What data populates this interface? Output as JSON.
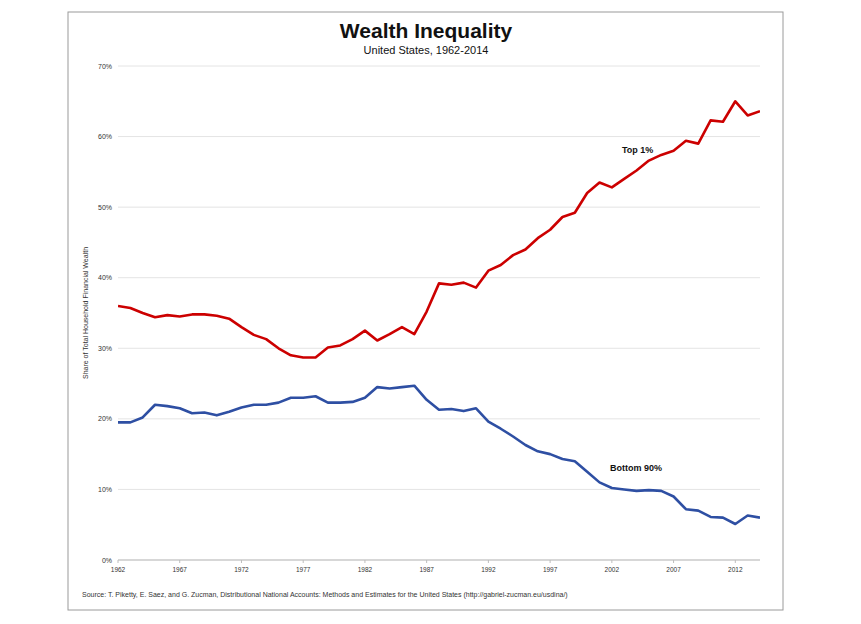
{
  "chart_data": {
    "type": "line",
    "title": "Wealth Inequality",
    "subtitle": "United States, 1962-2014",
    "y_label": "Share of Total Household Financial Wealth",
    "source": "Source: T. Piketty, E. Saez, and G. Zucman, Distributional National Accounts: Methods and Estimates for the United States (http://gabriel-zucman.eu/usdina/)",
    "x": [
      1962,
      1963,
      1964,
      1965,
      1966,
      1967,
      1968,
      1969,
      1970,
      1971,
      1972,
      1973,
      1974,
      1975,
      1976,
      1977,
      1978,
      1979,
      1980,
      1981,
      1982,
      1983,
      1984,
      1985,
      1986,
      1987,
      1988,
      1989,
      1990,
      1991,
      1992,
      1993,
      1994,
      1995,
      1996,
      1997,
      1998,
      1999,
      2000,
      2001,
      2002,
      2003,
      2004,
      2005,
      2006,
      2007,
      2008,
      2009,
      2010,
      2011,
      2012,
      2013,
      2014
    ],
    "series": [
      {
        "name": "Top 1%",
        "color": "#cc0000",
        "values": [
          36.0,
          35.7,
          35.0,
          34.4,
          34.7,
          34.5,
          34.8,
          34.8,
          34.6,
          34.2,
          33.0,
          31.9,
          31.3,
          30.0,
          29.0,
          28.7,
          28.7,
          30.1,
          30.4,
          31.3,
          32.5,
          31.1,
          32.0,
          33.0,
          32.0,
          35.2,
          39.2,
          39.0,
          39.3,
          38.6,
          41.0,
          41.8,
          43.2,
          44.0,
          45.6,
          46.8,
          48.6,
          49.2,
          52.0,
          53.5,
          52.8,
          54.0,
          55.2,
          56.6,
          57.4,
          58.0,
          59.4,
          59.0,
          62.3,
          62.1,
          65.0,
          63.0,
          63.6
        ]
      },
      {
        "name": "Bottom 90%",
        "color": "#2e4fa3",
        "values": [
          19.5,
          19.5,
          20.2,
          22.0,
          21.8,
          21.5,
          20.8,
          20.9,
          20.5,
          21.0,
          21.6,
          22.0,
          22.0,
          22.3,
          23.0,
          23.0,
          23.2,
          22.3,
          22.3,
          22.4,
          23.0,
          24.5,
          24.3,
          24.5,
          24.7,
          22.7,
          21.3,
          21.4,
          21.1,
          21.5,
          19.6,
          18.6,
          17.5,
          16.3,
          15.4,
          15.0,
          14.3,
          14.0,
          12.5,
          11.0,
          10.2,
          10.0,
          9.8,
          9.9,
          9.8,
          9.0,
          7.2,
          7.0,
          6.1,
          6.0,
          5.1,
          6.3,
          6.0
        ]
      }
    ],
    "xlim": [
      1962,
      2014
    ],
    "xticks": [
      1962,
      1967,
      1972,
      1977,
      1982,
      1987,
      1992,
      1997,
      2002,
      2007,
      2012
    ],
    "ylim": [
      0,
      70
    ],
    "yticks": [
      {
        "value": 0,
        "label": "0%"
      },
      {
        "value": 10,
        "label": "10%"
      },
      {
        "value": 20,
        "label": "20%"
      },
      {
        "value": 30,
        "label": "30%"
      },
      {
        "value": 40,
        "label": "40%"
      },
      {
        "value": 50,
        "label": "50%"
      },
      {
        "value": 60,
        "label": "60%"
      },
      {
        "value": 70,
        "label": "70%"
      }
    ],
    "grid": true
  }
}
